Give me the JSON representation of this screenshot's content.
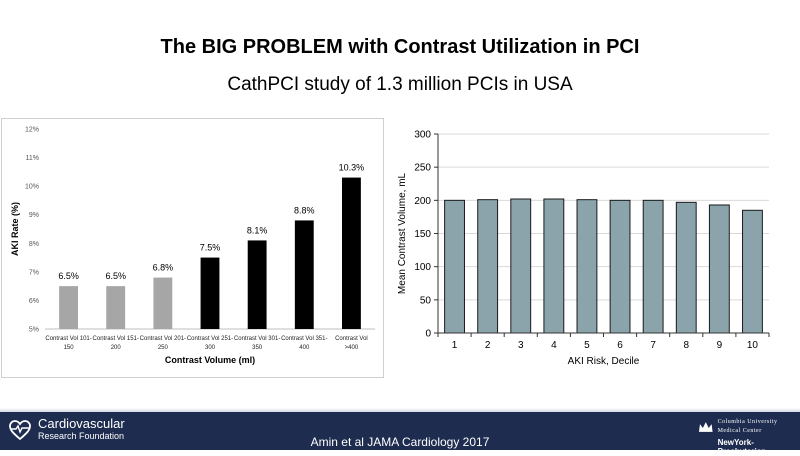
{
  "slide": {
    "title": "The BIG PROBLEM with Contrast Utilization in PCI",
    "subtitle": "CathPCI study of 1.3 million PCIs in USA"
  },
  "footer": {
    "citation": "Amin et al JAMA Cardiology 2017",
    "logo_left_line1": "Cardiovascular",
    "logo_left_line2": "Research Foundation",
    "logo_right_line1": "Columbia University",
    "logo_right_line2": "Medical Center",
    "logo_right_line3": "NewYork-Presbyterian"
  },
  "colors": {
    "footer_bg": "#1d2c4f",
    "bar_gray": "#a6a6a6",
    "bar_black": "#000000",
    "bar_teal": "#8ba4ac"
  },
  "chart_data": [
    {
      "type": "bar",
      "title": "",
      "xlabel": "Contrast Volume (ml)",
      "ylabel": "AKI Rate (%)",
      "ylim": [
        5,
        12
      ],
      "yticks": [
        "5%",
        "6%",
        "7%",
        "8%",
        "9%",
        "10%",
        "11%",
        "12%"
      ],
      "categories": [
        [
          "Contrast Vol 101-",
          "150"
        ],
        [
          "Contrast Vol 151-",
          "200"
        ],
        [
          "Contrast Vol 201-",
          "250"
        ],
        [
          "Contrast Vol 251-",
          "300"
        ],
        [
          "Contrast Vol 301-",
          "350"
        ],
        [
          "Contrast Vol 351-",
          "400"
        ],
        [
          "Contrast Vol",
          ">400"
        ]
      ],
      "values": [
        6.5,
        6.5,
        6.8,
        7.5,
        8.1,
        8.8,
        10.3
      ],
      "data_labels": [
        "6.5%",
        "6.5%",
        "6.8%",
        "7.5%",
        "8.1%",
        "8.8%",
        "10.3%"
      ],
      "bar_colors": [
        "#a6a6a6",
        "#a6a6a6",
        "#a6a6a6",
        "#000000",
        "#000000",
        "#000000",
        "#000000"
      ],
      "grid": false
    },
    {
      "type": "bar",
      "title": "",
      "xlabel": "AKI Risk, Decile",
      "ylabel": "Mean Contrast Volume, mL",
      "ylim": [
        0,
        300
      ],
      "yticks": [
        "0",
        "50",
        "100",
        "150",
        "200",
        "250",
        "300"
      ],
      "categories": [
        "1",
        "2",
        "3",
        "4",
        "5",
        "6",
        "7",
        "8",
        "9",
        "10"
      ],
      "values": [
        200,
        201,
        202,
        202,
        201,
        200,
        200,
        197,
        193,
        185
      ],
      "bar_color": "#8ba4ac",
      "grid": true
    }
  ]
}
